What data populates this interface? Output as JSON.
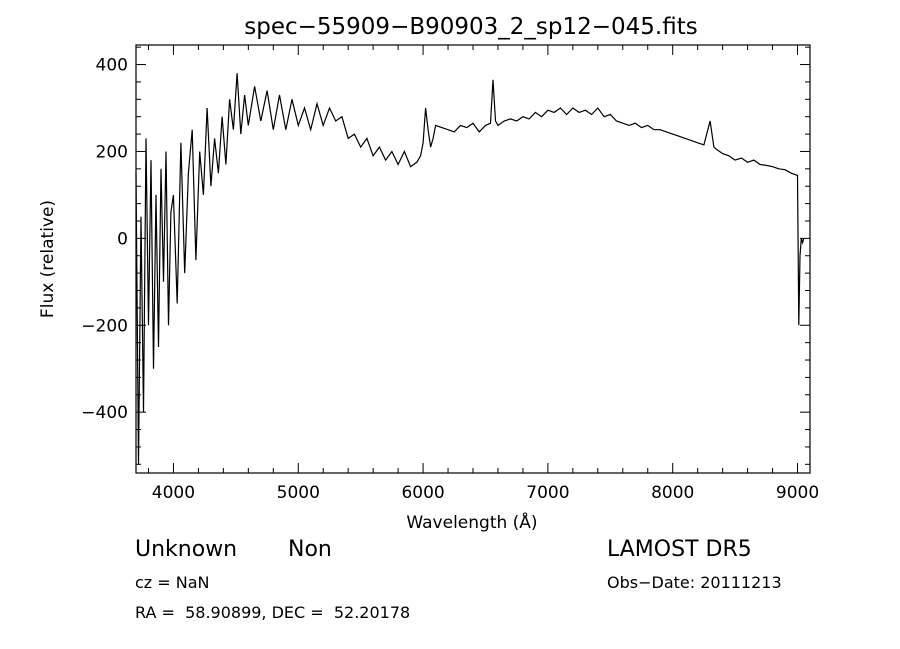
{
  "chart_data": {
    "type": "line",
    "title": "spec−55909−B90903_2_sp12−045.fits",
    "xlabel": "Wavelength (Å)",
    "ylabel": "Flux (relative)",
    "xlim": [
      3700,
      9100
    ],
    "ylim": [
      -540,
      445
    ],
    "x_ticks": [
      4000,
      5000,
      6000,
      7000,
      8000,
      9000
    ],
    "y_ticks": [
      -400,
      -200,
      0,
      200,
      400
    ],
    "y_tick_labels": [
      "−400",
      "−200",
      "0",
      "200",
      "400"
    ],
    "grid": false,
    "legend": "none",
    "line_color": "#000000",
    "series": [
      {
        "x": [
          3700,
          3720,
          3740,
          3760,
          3780,
          3800,
          3820,
          3840,
          3860,
          3880,
          3900,
          3920,
          3940,
          3960,
          3980,
          4000,
          4030,
          4060,
          4090,
          4120,
          4150,
          4180,
          4210,
          4240,
          4270,
          4300,
          4330,
          4360,
          4390,
          4420,
          4450,
          4480,
          4510,
          4540,
          4570,
          4600,
          4650,
          4700,
          4750,
          4800,
          4850,
          4900,
          4950,
          5000,
          5050,
          5100,
          5150,
          5200,
          5250,
          5300,
          5350,
          5400,
          5450,
          5500,
          5550,
          5600,
          5650,
          5700,
          5750,
          5800,
          5850,
          5900,
          5950,
          5980,
          6000,
          6020,
          6040,
          6060,
          6080,
          6100,
          6150,
          6200,
          6250,
          6300,
          6350,
          6400,
          6450,
          6500,
          6540,
          6560,
          6580,
          6600,
          6650,
          6700,
          6750,
          6800,
          6850,
          6900,
          6950,
          7000,
          7050,
          7100,
          7150,
          7200,
          7250,
          7300,
          7350,
          7400,
          7450,
          7500,
          7550,
          7600,
          7650,
          7700,
          7750,
          7800,
          7850,
          7900,
          7950,
          8000,
          8050,
          8100,
          8150,
          8200,
          8250,
          8300,
          8330,
          8350,
          8400,
          8450,
          8500,
          8550,
          8600,
          8650,
          8700,
          8750,
          8800,
          8850,
          8900,
          8950,
          9000,
          9010,
          9020,
          9030,
          9040,
          9050
        ],
        "y": [
          150,
          -520,
          50,
          -400,
          230,
          -200,
          180,
          -300,
          100,
          -250,
          160,
          -100,
          200,
          -200,
          60,
          100,
          -150,
          220,
          -80,
          150,
          250,
          -50,
          200,
          100,
          300,
          120,
          230,
          150,
          280,
          170,
          320,
          250,
          380,
          240,
          330,
          260,
          350,
          270,
          340,
          250,
          330,
          250,
          320,
          260,
          300,
          250,
          310,
          260,
          300,
          270,
          280,
          230,
          240,
          210,
          230,
          190,
          210,
          180,
          200,
          170,
          200,
          165,
          175,
          190,
          220,
          300,
          250,
          210,
          230,
          260,
          255,
          250,
          245,
          260,
          255,
          265,
          245,
          260,
          265,
          365,
          270,
          260,
          270,
          275,
          270,
          280,
          275,
          290,
          280,
          295,
          290,
          300,
          285,
          300,
          290,
          295,
          285,
          300,
          280,
          285,
          270,
          265,
          260,
          265,
          255,
          260,
          250,
          250,
          245,
          240,
          235,
          230,
          225,
          220,
          215,
          270,
          210,
          205,
          195,
          190,
          180,
          185,
          175,
          180,
          170,
          168,
          165,
          160,
          158,
          150,
          145,
          -200,
          -40,
          0,
          -10,
          0
        ]
      }
    ]
  },
  "info": {
    "object_class": "Unknown",
    "subclass": "Non",
    "redshift": "cz = NaN",
    "coords": "RA =  58.90899, DEC =  52.20178",
    "survey": "LAMOST DR5",
    "obs_date": "Obs−Date: 20111213"
  }
}
